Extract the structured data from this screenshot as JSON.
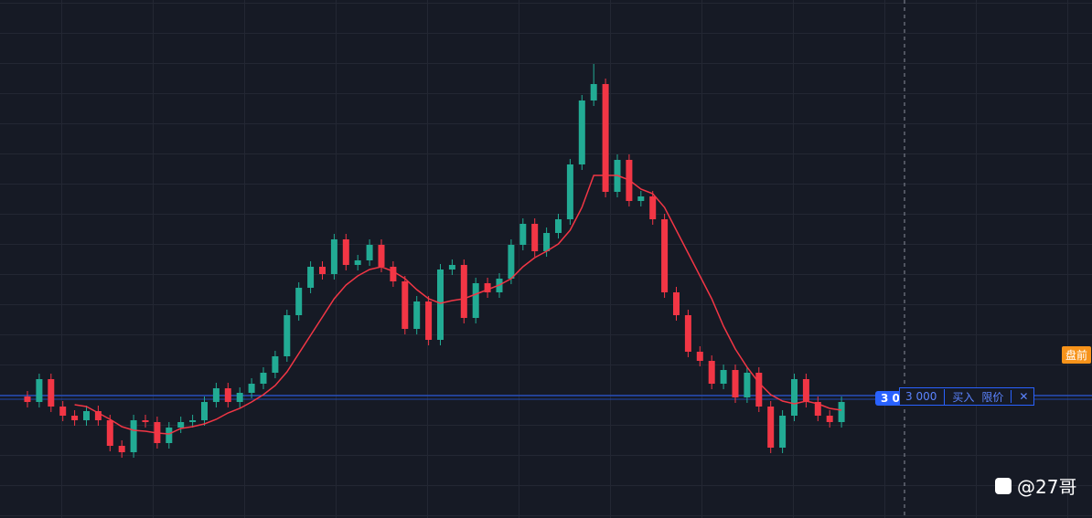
{
  "chart_data": {
    "type": "candlestick",
    "ylim": [
      0,
      567
    ],
    "up_color": "#22ab94",
    "down_color": "#f23645",
    "open": [
      133,
      127,
      152,
      122,
      112,
      107,
      117,
      107,
      79,
      72,
      107,
      105,
      82,
      99,
      105,
      107,
      127,
      142,
      127,
      137,
      147,
      159,
      177,
      222,
      252,
      275,
      267,
      305,
      277,
      282,
      299,
      275,
      259,
      207,
      237,
      195,
      272,
      277,
      219,
      257,
      247,
      262,
      299,
      322,
      292,
      312,
      327,
      387,
      457,
      475,
      357,
      392,
      347,
      352,
      327,
      247,
      222,
      182,
      172,
      147,
      162,
      132,
      159,
      122,
      77,
      112,
      152,
      127,
      112,
      105
    ],
    "high": [
      139,
      158,
      158,
      128,
      118,
      123,
      123,
      113,
      85,
      113,
      113,
      111,
      105,
      111,
      113,
      133,
      148,
      148,
      143,
      153,
      165,
      183,
      228,
      258,
      281,
      281,
      311,
      311,
      288,
      305,
      305,
      281,
      265,
      243,
      243,
      278,
      283,
      283,
      263,
      263,
      268,
      305,
      328,
      328,
      318,
      333,
      393,
      463,
      497,
      481,
      398,
      398,
      358,
      358,
      333,
      253,
      228,
      188,
      178,
      168,
      168,
      165,
      165,
      128,
      118,
      158,
      158,
      133,
      118,
      133
    ],
    "low": [
      121,
      121,
      116,
      106,
      101,
      101,
      101,
      73,
      66,
      66,
      99,
      76,
      76,
      93,
      99,
      101,
      121,
      121,
      121,
      131,
      141,
      153,
      171,
      216,
      246,
      261,
      261,
      271,
      271,
      276,
      269,
      253,
      201,
      201,
      189,
      189,
      266,
      213,
      213,
      241,
      241,
      256,
      293,
      286,
      286,
      306,
      321,
      381,
      451,
      351,
      351,
      341,
      341,
      321,
      241,
      216,
      176,
      166,
      141,
      141,
      126,
      126,
      116,
      71,
      71,
      106,
      121,
      106,
      99,
      99
    ],
    "close": [
      127,
      152,
      122,
      112,
      107,
      117,
      107,
      79,
      72,
      107,
      105,
      82,
      99,
      105,
      107,
      127,
      142,
      127,
      137,
      147,
      159,
      177,
      222,
      252,
      275,
      267,
      305,
      277,
      282,
      299,
      275,
      259,
      207,
      237,
      195,
      272,
      277,
      219,
      257,
      247,
      262,
      299,
      322,
      292,
      312,
      327,
      387,
      457,
      475,
      357,
      392,
      347,
      352,
      327,
      247,
      222,
      182,
      172,
      147,
      162,
      132,
      159,
      122,
      77,
      112,
      152,
      127,
      112,
      105,
      127
    ],
    "ma": {
      "color": "#f23645",
      "values": [
        null,
        null,
        null,
        null,
        124,
        122,
        115,
        108,
        100,
        96,
        95,
        93,
        92,
        98,
        100,
        103,
        108,
        115,
        120,
        127,
        135,
        145,
        160,
        180,
        200,
        220,
        240,
        255,
        265,
        272,
        275,
        270,
        262,
        250,
        240,
        235,
        238,
        240,
        245,
        250,
        255,
        262,
        275,
        285,
        292,
        300,
        315,
        340,
        375,
        375,
        375,
        370,
        360,
        355,
        340,
        315,
        290,
        265,
        240,
        210,
        185,
        165,
        148,
        135,
        128,
        125,
        128,
        125,
        120,
        118
      ]
    }
  },
  "session_tag": "盘前",
  "order": {
    "price_tag": "3 0",
    "quantity": "3 000",
    "side": "买入",
    "type": "限价",
    "close": "✕"
  },
  "watermark": "@27哥"
}
